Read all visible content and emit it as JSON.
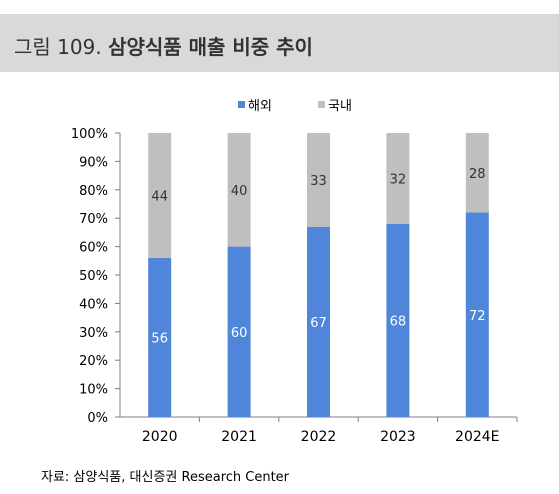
{
  "header": {
    "figure_prefix": "그림 109.",
    "figure_title": "삼양식품 매출 비중 추이"
  },
  "source": "자료: 삼양식품, 대신증권 Research Center",
  "colors": {
    "overseas": "#4f86d9",
    "domestic": "#bfbfbf",
    "title_band": "#d9d9d9"
  },
  "chart_data": {
    "type": "bar",
    "stacked": true,
    "categories": [
      "2020",
      "2021",
      "2022",
      "2023",
      "2024E"
    ],
    "series": [
      {
        "name": "해외",
        "values": [
          56,
          60,
          67,
          68,
          72
        ],
        "color": "#4f86d9",
        "label_color": "#ffffff"
      },
      {
        "name": "국내",
        "values": [
          44,
          40,
          33,
          32,
          28
        ],
        "color": "#bfbfbf",
        "label_color": "#333333"
      }
    ],
    "y_ticks": [
      "0%",
      "10%",
      "20%",
      "30%",
      "40%",
      "50%",
      "60%",
      "70%",
      "80%",
      "90%",
      "100%"
    ],
    "ylim": [
      0,
      100
    ],
    "legend_position": "top",
    "grid": false
  }
}
